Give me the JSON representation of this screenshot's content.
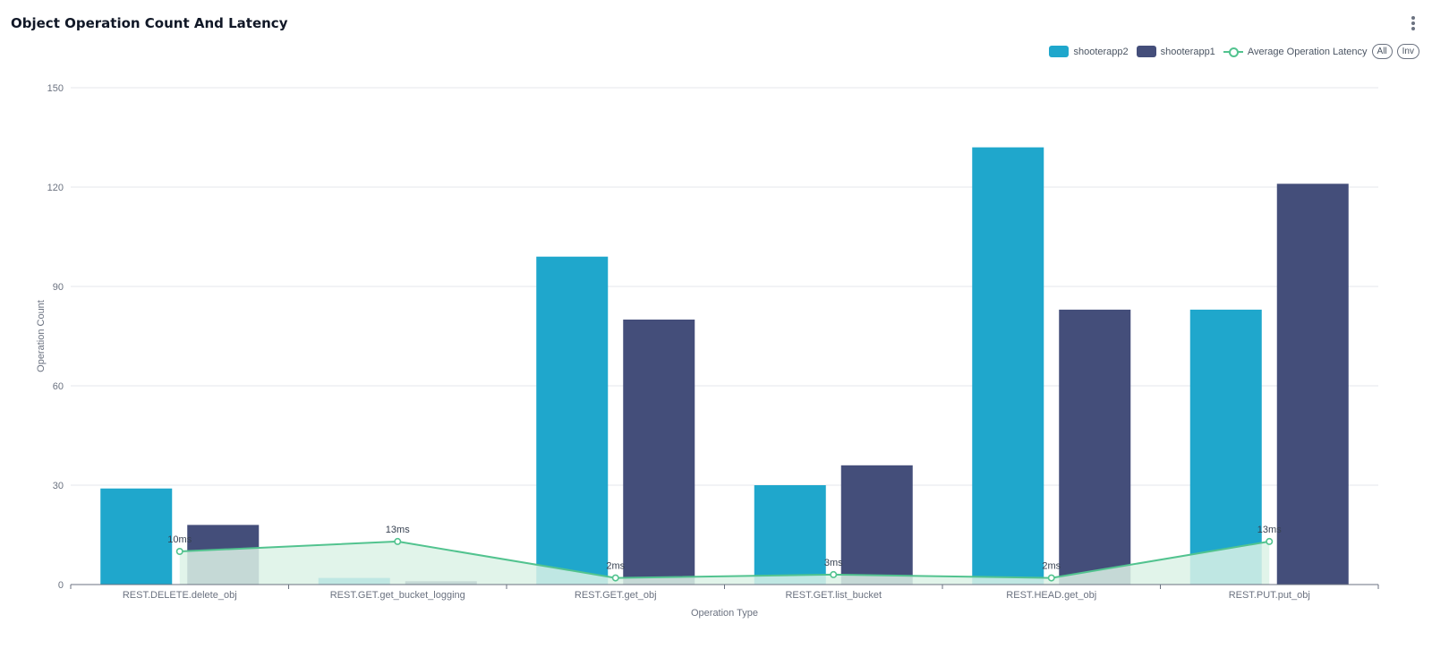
{
  "card": {
    "title": "Object Operation Count And Latency",
    "menu_icon": "kebab-menu-icon"
  },
  "legend": {
    "all_label": "All",
    "inv_label": "Inv"
  },
  "colors": {
    "shooterapp2": "#1fa7cc",
    "shooterapp1": "#444e7a",
    "latency_line": "#52c38f",
    "latency_area": "#dcf2e6",
    "grid": "#e5e7eb",
    "axis": "#6b7280"
  },
  "chart_data": {
    "type": "bar",
    "title": "Object Operation Count And Latency",
    "xlabel": "Operation Type",
    "ylabel": "Operation Count",
    "ylim": [
      0,
      150
    ],
    "yticks": [
      0,
      30,
      60,
      90,
      120,
      150
    ],
    "grid": true,
    "legend_position": "top-right",
    "categories": [
      "REST.DELETE.delete_obj",
      "REST.GET.get_bucket_logging",
      "REST.GET.get_obj",
      "REST.GET.list_bucket",
      "REST.HEAD.get_obj",
      "REST.PUT.put_obj"
    ],
    "series": [
      {
        "name": "shooterapp2",
        "type": "bar",
        "values": [
          29,
          2,
          99,
          30,
          132,
          83
        ]
      },
      {
        "name": "shooterapp1",
        "type": "bar",
        "values": [
          18,
          1,
          80,
          36,
          83,
          121
        ]
      },
      {
        "name": "Average Operation Latency",
        "type": "line",
        "values": [
          10,
          13,
          2,
          3,
          2,
          13
        ],
        "labels": [
          "10ms",
          "13ms",
          "2ms",
          "3ms",
          "2ms",
          "13ms"
        ]
      }
    ]
  }
}
